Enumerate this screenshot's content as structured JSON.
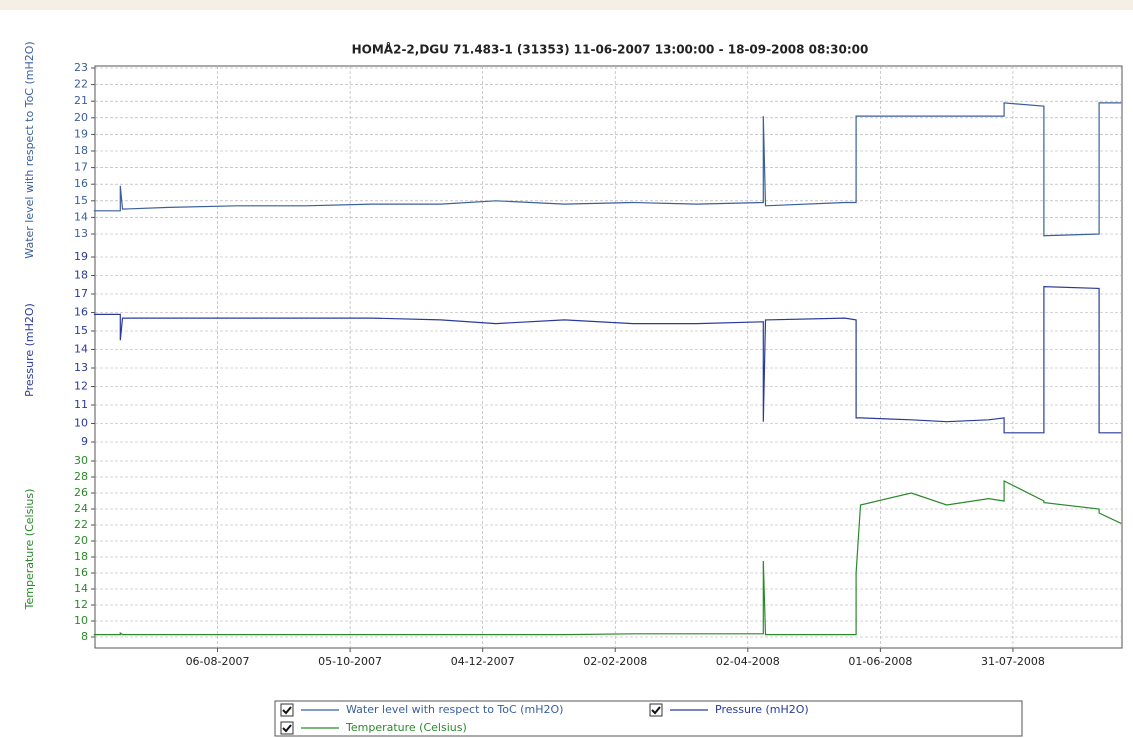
{
  "chart_data": {
    "type": "line",
    "title": "HOMÅ2-2,DGU 71.483-1 (31353)   11-06-2007 13:00:00  -  18-09-2008 08:30:00",
    "xlim": [
      "11-06-2007 13:00:00",
      "18-09-2008 08:30:00"
    ],
    "xticks": [
      "06-08-2007",
      "05-10-2007",
      "04-12-2007",
      "02-02-2008",
      "02-04-2008",
      "01-06-2008",
      "31-07-2008"
    ],
    "grid": true,
    "x": [
      "11-06-2007",
      "23-06-2007",
      "23-06-2007",
      "24-06-2007",
      "15-07-2007",
      "15-08-2007",
      "15-09-2007",
      "15-10-2007",
      "15-11-2007",
      "10-12-2007",
      "10-01-2008",
      "10-02-2008",
      "10-03-2008",
      "09-04-2008",
      "09-04-2008",
      "10-04-2008",
      "16-05-2008",
      "21-05-2008",
      "21-05-2008",
      "23-05-2008",
      "15-06-2008",
      "01-07-2008",
      "20-07-2008",
      "27-07-2008",
      "27-07-2008",
      "14-08-2008",
      "14-08-2008",
      "08-09-2008",
      "08-09-2008",
      "18-09-2008"
    ],
    "panels": [
      {
        "ylabel": "Water level with respect to ToC (mH2O)",
        "ylim": [
          13,
          23
        ],
        "yticks": [
          13,
          14,
          15,
          16,
          17,
          18,
          19,
          20,
          21,
          22,
          23
        ],
        "series": [
          {
            "name": "Water level with respect to ToC (mH2O)",
            "color": "#3a5f9a",
            "values": [
              14.4,
              14.4,
              15.9,
              14.5,
              14.6,
              14.7,
              14.7,
              14.8,
              14.8,
              15.0,
              14.8,
              14.9,
              14.8,
              14.9,
              20.1,
              14.7,
              14.9,
              14.9,
              20.1,
              20.1,
              20.1,
              20.1,
              20.1,
              20.1,
              20.9,
              20.7,
              12.9,
              13.0,
              20.9,
              20.9
            ]
          }
        ]
      },
      {
        "ylabel": "Pressure (mH2O)",
        "ylim": [
          9,
          19
        ],
        "yticks": [
          9,
          10,
          11,
          12,
          13,
          14,
          15,
          16,
          17,
          18,
          19
        ],
        "series": [
          {
            "name": "Pressure (mH2O)",
            "color": "#2a3a9a",
            "values": [
              15.9,
              15.9,
              14.5,
              15.7,
              15.7,
              15.7,
              15.7,
              15.7,
              15.6,
              15.4,
              15.6,
              15.4,
              15.4,
              15.5,
              10.1,
              15.6,
              15.7,
              15.6,
              10.3,
              10.3,
              10.2,
              10.1,
              10.2,
              10.3,
              9.5,
              9.5,
              17.4,
              17.3,
              9.5,
              9.5
            ]
          }
        ]
      },
      {
        "ylabel": "Temperature (Celsius)",
        "ylim": [
          8,
          30
        ],
        "yticks": [
          8,
          10,
          12,
          14,
          16,
          18,
          20,
          22,
          24,
          26,
          28,
          30
        ],
        "series": [
          {
            "name": "Temperature (Celsius)",
            "color": "#2a8a2a",
            "values": [
              8.3,
              8.3,
              8.5,
              8.3,
              8.3,
              8.3,
              8.3,
              8.3,
              8.3,
              8.3,
              8.3,
              8.4,
              8.4,
              8.4,
              17.5,
              8.3,
              8.3,
              8.3,
              16.0,
              24.5,
              26.0,
              24.5,
              25.3,
              25.0,
              27.5,
              25.0,
              24.8,
              24.0,
              23.5,
              22.2
            ]
          }
        ]
      }
    ]
  }
}
